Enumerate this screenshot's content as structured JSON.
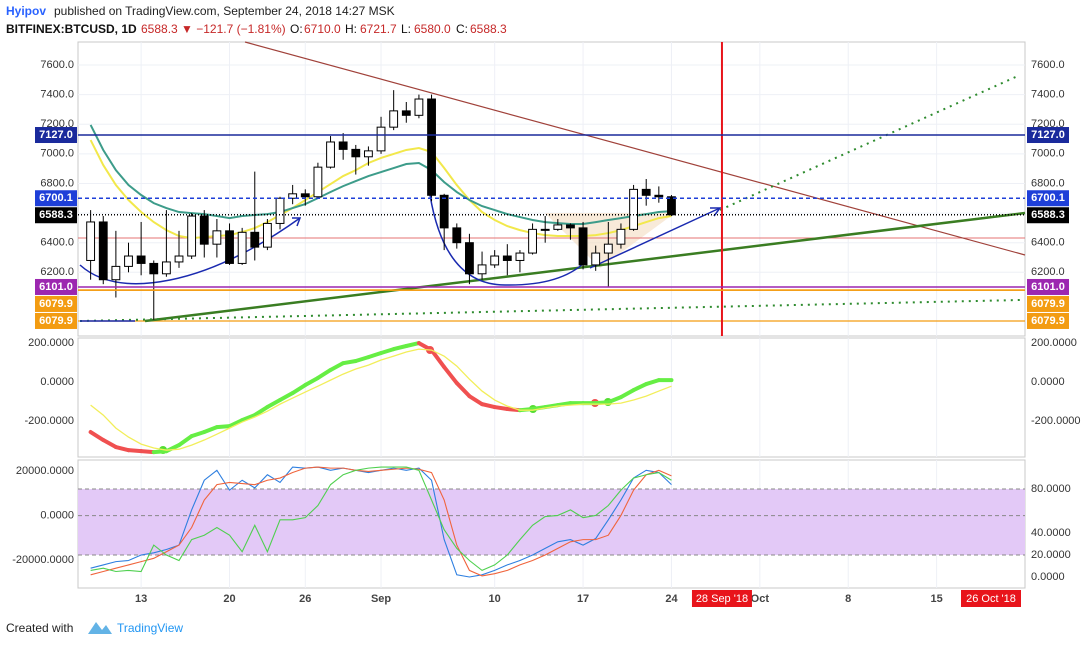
{
  "header": {
    "author": "Hyipov",
    "published": "published on TradingView.com, September 24, 2018 14:27 MSK",
    "symbol": "BITFINEX:BTCUSD, 1D",
    "change": "6588.3 ▼ −121.7 (−1.81%)",
    "o_label": "O:",
    "o": "6710.0",
    "h_label": "H:",
    "h": "6721.7",
    "l_label": "L:",
    "l": "6580.0",
    "c_label": "C:",
    "c": "6588.3"
  },
  "footer": {
    "created": "Created with",
    "brand": "TradingView"
  },
  "chart_data": [
    {
      "type": "candlestick",
      "x": [
        "2018-08-09",
        "2018-08-10",
        "2018-08-11",
        "2018-08-12",
        "2018-08-13",
        "2018-08-14",
        "2018-08-15",
        "2018-08-16",
        "2018-08-17",
        "2018-08-18",
        "2018-08-19",
        "2018-08-20",
        "2018-08-21",
        "2018-08-22",
        "2018-08-23",
        "2018-08-24",
        "2018-08-25",
        "2018-08-26",
        "2018-08-27",
        "2018-08-28",
        "2018-08-29",
        "2018-08-30",
        "2018-08-31",
        "2018-09-01",
        "2018-09-02",
        "2018-09-03",
        "2018-09-04",
        "2018-09-05",
        "2018-09-06",
        "2018-09-07",
        "2018-09-08",
        "2018-09-09",
        "2018-09-10",
        "2018-09-11",
        "2018-09-12",
        "2018-09-13",
        "2018-09-14",
        "2018-09-15",
        "2018-09-16",
        "2018-09-17",
        "2018-09-18",
        "2018-09-19",
        "2018-09-20",
        "2018-09-21",
        "2018-09-22",
        "2018-09-23",
        "2018-09-24"
      ],
      "open": [
        6280,
        6540,
        6150,
        6240,
        6310,
        6260,
        6190,
        6270,
        6310,
        6580,
        6390,
        6480,
        6260,
        6470,
        6370,
        6530,
        6700,
        6730,
        6710,
        6910,
        7080,
        7030,
        6980,
        7020,
        7180,
        7290,
        7260,
        7370,
        6720,
        6500,
        6400,
        6190,
        6250,
        6310,
        6280,
        6330,
        6490,
        6490,
        6520,
        6500,
        6250,
        6330,
        6390,
        6490,
        6760,
        6720,
        6710
      ],
      "high": [
        6620,
        6580,
        6480,
        6400,
        6540,
        6280,
        6620,
        6480,
        6600,
        6620,
        6560,
        6530,
        6500,
        6880,
        6560,
        6710,
        6790,
        6760,
        6940,
        7120,
        7140,
        7060,
        7050,
        7250,
        7430,
        7350,
        7400,
        7400,
        6730,
        6530,
        6460,
        6340,
        6350,
        6390,
        6350,
        6530,
        6580,
        6560,
        6530,
        6540,
        6380,
        6540,
        6530,
        6790,
        6830,
        6780,
        6721.7
      ],
      "low": [
        6150,
        6120,
        6030,
        6200,
        6180,
        5880,
        6170,
        6230,
        6290,
        6300,
        6300,
        6250,
        6250,
        6280,
        6350,
        6490,
        6660,
        6650,
        6700,
        6900,
        6960,
        6860,
        6920,
        7000,
        7160,
        7210,
        7240,
        6680,
        6350,
        6360,
        6120,
        6150,
        6230,
        6180,
        6200,
        6320,
        6400,
        6480,
        6420,
        6220,
        6210,
        6100,
        6360,
        6480,
        6650,
        6670,
        6580
      ],
      "close": [
        6540,
        6150,
        6240,
        6310,
        6260,
        6190,
        6270,
        6310,
        6580,
        6390,
        6480,
        6260,
        6470,
        6370,
        6530,
        6700,
        6730,
        6710,
        6910,
        7080,
        7030,
        6980,
        7020,
        7180,
        7290,
        7260,
        7370,
        6720,
        6500,
        6400,
        6190,
        6250,
        6310,
        6280,
        6330,
        6490,
        6490,
        6520,
        6500,
        6250,
        6330,
        6390,
        6490,
        6760,
        6720,
        6710,
        6588.3
      ],
      "up_color": "#ffffff",
      "down_color": "#000000",
      "overlays": [
        {
          "color": "#f2e84b",
          "values": [
            7093,
            6924,
            6789,
            6688,
            6607,
            6539,
            6485,
            6445,
            6431,
            6438,
            6445,
            6451,
            6472,
            6499,
            6539,
            6587,
            6634,
            6688,
            6742,
            6796,
            6850,
            6890,
            6938,
            6972,
            6999,
            7026,
            7039,
            7012,
            6904,
            6789,
            6688,
            6607,
            6553,
            6512,
            6485,
            6465,
            6451,
            6445,
            6445,
            6445,
            6451,
            6465,
            6485,
            6512,
            6539,
            6566,
            6580
          ]
        },
        {
          "color": "#3d9c8a",
          "values": [
            7195,
            7026,
            6890,
            6789,
            6722,
            6667,
            6634,
            6607,
            6600,
            6593,
            6580,
            6566,
            6580,
            6587,
            6593,
            6607,
            6634,
            6661,
            6701,
            6742,
            6782,
            6816,
            6850,
            6877,
            6904,
            6931,
            6938,
            6890,
            6809,
            6742,
            6688,
            6647,
            6620,
            6593,
            6573,
            6553,
            6539,
            6532,
            6526,
            6526,
            6539,
            6553,
            6566,
            6580,
            6593,
            6607,
            6613
          ]
        }
      ],
      "xlim": [
        "2018-08-08",
        "2018-10-22"
      ],
      "xticks": [
        {
          "value": "2018-08-13",
          "label": "13"
        },
        {
          "value": "2018-08-20",
          "label": "20"
        },
        {
          "value": "2018-08-26",
          "label": "26"
        },
        {
          "value": "2018-09-01",
          "label": "Sep"
        },
        {
          "value": "2018-09-10",
          "label": "10"
        },
        {
          "value": "2018-09-17",
          "label": "17"
        },
        {
          "value": "2018-09-24",
          "label": "24"
        },
        {
          "value": "2018-10-01",
          "label": "Oct"
        },
        {
          "value": "2018-10-08",
          "label": "8"
        },
        {
          "value": "2018-10-15",
          "label": "15"
        }
      ],
      "ylim": [
        5770,
        7755
      ],
      "yticks": [
        {
          "value": 6200,
          "label": "6200.0"
        },
        {
          "value": 6400,
          "label": "6400.0"
        },
        {
          "value": 6600,
          "label": "6600.0"
        },
        {
          "value": 6800,
          "label": "6800.0"
        },
        {
          "value": 7000,
          "label": "7000.0"
        },
        {
          "value": 7200,
          "label": "7200.0"
        },
        {
          "value": 7400,
          "label": "7400.0"
        },
        {
          "value": 7600,
          "label": "7600.0"
        }
      ],
      "grid": true,
      "levels": [
        {
          "value": 7127,
          "label": "7127.0",
          "color": "#1a2a9c",
          "style": "solid"
        },
        {
          "value": 6700.1,
          "label": "6700.1",
          "color": "#1e3fd8",
          "style": "dashed"
        },
        {
          "value": 6588.3,
          "label": "6588.3",
          "color": "#000000",
          "style": "dotted"
        },
        {
          "value": 6101,
          "label": "6101.0",
          "color": "#9c27b0",
          "style": "solid"
        },
        {
          "value": 6079.9,
          "label": "6079.9",
          "color": "#f39c12",
          "style": "solid"
        },
        {
          "value": 6079.9,
          "label": "6079.9",
          "color": "#f39c12",
          "style": "solid"
        }
      ],
      "vline": {
        "x": "2018-09-28",
        "label": "28 Sep '18",
        "color": "#e8141b"
      },
      "end_label": "26 Oct '18"
    },
    {
      "type": "line",
      "ylim": [
        -384,
        226
      ],
      "yticks": [
        {
          "value": -200,
          "label": "-200.0000"
        },
        {
          "value": 0,
          "label": "0.0000"
        },
        {
          "value": 200,
          "label": "200.0000"
        }
      ],
      "series": [
        {
          "color": "#66ee44",
          "down_color": "#f05050",
          "width": 4,
          "values": [
            -256,
            -297,
            -333,
            -349,
            -354,
            -359,
            -354,
            -323,
            -277,
            -256,
            -231,
            -226,
            -195,
            -169,
            -128,
            -92,
            -56,
            -15,
            21,
            62,
            97,
            108,
            128,
            149,
            169,
            185,
            200,
            164,
            77,
            -5,
            -72,
            -113,
            -128,
            -138,
            -144,
            -138,
            -128,
            -118,
            -108,
            -108,
            -108,
            -103,
            -77,
            -41,
            -10,
            10,
            10
          ]
        },
        {
          "color": "#f2ee5a",
          "width": 1.3,
          "values": [
            -118,
            -169,
            -236,
            -282,
            -318,
            -338,
            -349,
            -344,
            -323,
            -297,
            -267,
            -236,
            -205,
            -179,
            -149,
            -113,
            -82,
            -51,
            -21,
            10,
            41,
            67,
            87,
            113,
            133,
            154,
            169,
            164,
            133,
            82,
            15,
            -46,
            -92,
            -123,
            -144,
            -144,
            -133,
            -123,
            -118,
            -113,
            -113,
            -113,
            -108,
            -92,
            -72,
            -46,
            -21
          ]
        }
      ]
    },
    {
      "type": "line",
      "ylim": [
        -32444,
        24889
      ],
      "yticks": [
        {
          "value": -20000,
          "label": "-20000.0000"
        },
        {
          "value": 0,
          "label": "0.0000"
        },
        {
          "value": 20000,
          "label": "20000.0000"
        }
      ],
      "y2lim": [
        -10,
        106.4
      ],
      "y2ticks": [
        {
          "value": 0,
          "label": "0.0000"
        },
        {
          "value": 20,
          "label": "20.0000"
        },
        {
          "value": 40,
          "label": "40.0000"
        },
        {
          "value": 80,
          "label": "80.0000"
        }
      ],
      "band": [
        20,
        80
      ],
      "series": [
        {
          "axis": "y2",
          "color": "#2e7fe0",
          "width": 1.1,
          "values": [
            8,
            11,
            14,
            15,
            20,
            22,
            25,
            29,
            61,
            88,
            97,
            79,
            88,
            81,
            93,
            86,
            100,
            99,
            100,
            97,
            99,
            97,
            95,
            97,
            99,
            97,
            99,
            88,
            34,
            2,
            0,
            2,
            6,
            11,
            15,
            20,
            26,
            32,
            34,
            29,
            35,
            52,
            70,
            90,
            97,
            95,
            84
          ]
        },
        {
          "axis": "y2",
          "color": "#f0643c",
          "width": 1.1,
          "values": [
            2,
            5,
            8,
            11,
            14,
            17,
            23,
            29,
            45,
            70,
            84,
            86,
            85,
            84,
            88,
            90,
            95,
            99,
            100,
            99,
            99,
            97,
            96,
            97,
            98,
            99,
            98,
            95,
            70,
            29,
            6,
            1,
            3,
            6,
            11,
            15,
            20,
            26,
            32,
            34,
            34,
            38,
            56,
            79,
            93,
            97,
            92
          ]
        },
        {
          "axis": "y2",
          "color": "#4fd04f",
          "width": 1.1,
          "values": [
            6,
            8,
            5,
            6,
            5,
            29,
            20,
            15,
            34,
            38,
            45,
            38,
            23,
            47,
            23,
            52,
            52,
            54,
            65,
            84,
            93,
            97,
            99,
            100,
            100,
            100,
            97,
            70,
            43,
            26,
            15,
            6,
            11,
            20,
            34,
            47,
            55,
            56,
            61,
            54,
            56,
            65,
            79,
            90,
            93,
            95,
            88
          ]
        }
      ]
    }
  ]
}
